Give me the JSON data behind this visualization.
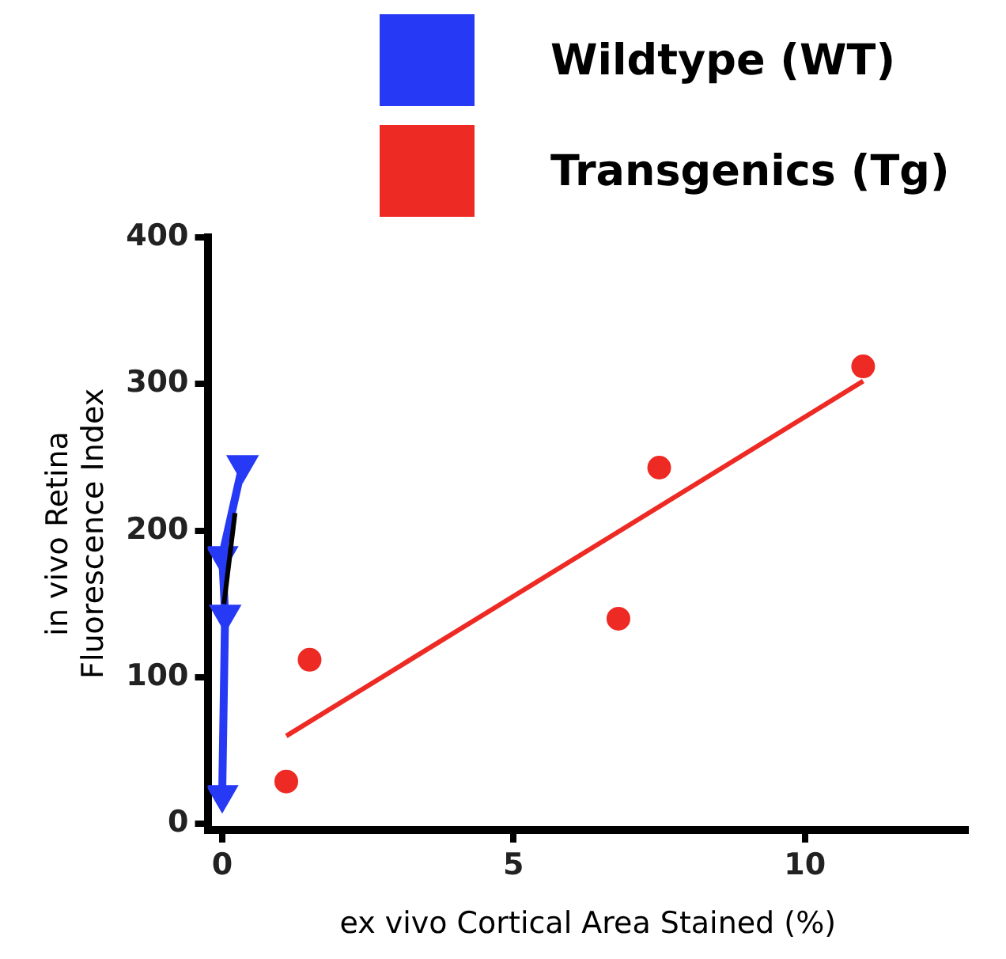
{
  "chart_data": {
    "type": "scatter",
    "xlabel": "ex vivo Cortical Area Stained (%)",
    "ylabel": "in vivo Retina\nFluorescence Index",
    "xlim": [
      -0.25,
      12.8
    ],
    "xticks": [
      0,
      5,
      10
    ],
    "ylim": [
      -4,
      400
    ],
    "yticks": [
      0,
      100,
      200,
      300,
      400
    ],
    "grid": false,
    "legend": "top right",
    "series": [
      {
        "name": "Wildtype (WT)",
        "type": "line",
        "marker": "triangle",
        "color": "#2639f5",
        "x": [
          0,
          0.05,
          0,
          0.35
        ],
        "values": [
          20,
          143,
          183,
          245
        ]
      },
      {
        "name": "Transgenics (Tg)",
        "marker": "circle",
        "color": "#ee2a24",
        "x": [
          1.1,
          1.5,
          6.8,
          7.5,
          11
        ],
        "values": [
          29,
          112,
          140,
          243,
          312
        ]
      },
      {
        "type": "line",
        "marker": "none",
        "color": "#ee2a24",
        "x": [
          1.1,
          11
        ],
        "values": [
          60,
          302
        ]
      },
      {
        "type": "line",
        "marker": "none",
        "color": "#000000",
        "x": [
          0.03,
          0.22
        ],
        "values": [
          150,
          212
        ]
      }
    ]
  }
}
